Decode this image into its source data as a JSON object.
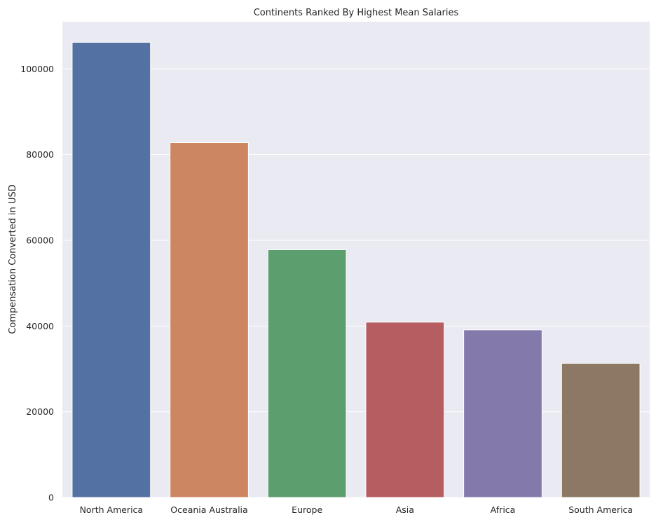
{
  "chart_data": {
    "type": "bar",
    "title": "Continents Ranked By Highest Mean Salaries",
    "xlabel": "",
    "ylabel": "Compensation Converted in USD",
    "categories": [
      "North America",
      "Oceania Australia",
      "Europe",
      "Asia",
      "Africa",
      "South America"
    ],
    "values": [
      106200,
      82800,
      57800,
      40900,
      39100,
      31300
    ],
    "colors": [
      "#5471a4",
      "#cc8762",
      "#5d9e6f",
      "#b65d62",
      "#8479ab",
      "#8c7864"
    ],
    "ylim": [
      0,
      111000
    ],
    "yticks": [
      0,
      20000,
      40000,
      60000,
      80000,
      100000
    ],
    "ytick_labels": [
      "0",
      "20000",
      "40000",
      "60000",
      "80000",
      "100000"
    ],
    "grid": true,
    "background": "#eaeaf2",
    "gridColor": "#ffffff"
  }
}
